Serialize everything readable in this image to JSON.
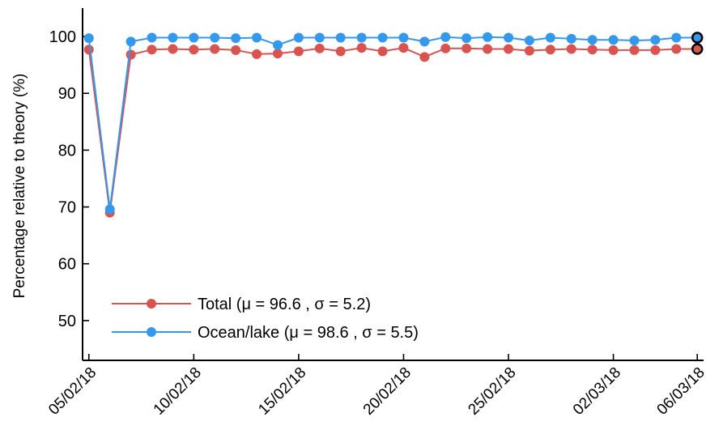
{
  "chart_data": {
    "type": "line",
    "ylabel": "Percentage relative to theory (%)",
    "ylim": [
      43,
      105
    ],
    "yticks": [
      50,
      60,
      70,
      80,
      90,
      100
    ],
    "xlim": [
      -0.3,
      29.3
    ],
    "xticks": [
      {
        "pos": 0,
        "label": "05/02/18"
      },
      {
        "pos": 5,
        "label": "10/02/18"
      },
      {
        "pos": 10,
        "label": "15/02/18"
      },
      {
        "pos": 15,
        "label": "20/02/18"
      },
      {
        "pos": 20,
        "label": "25/02/18"
      },
      {
        "pos": 25,
        "label": "02/03/18"
      },
      {
        "pos": 29,
        "label": "06/03/18"
      }
    ],
    "x": [
      0,
      1,
      2,
      3,
      4,
      5,
      6,
      7,
      8,
      9,
      10,
      11,
      12,
      13,
      14,
      15,
      16,
      17,
      18,
      19,
      20,
      21,
      22,
      23,
      24,
      25,
      26,
      27,
      28,
      29
    ],
    "series": [
      {
        "name": "Total",
        "color": "#d9534f",
        "values": [
          97.7,
          69.0,
          96.8,
          97.7,
          97.8,
          97.7,
          97.8,
          97.6,
          96.9,
          97.0,
          97.4,
          97.9,
          97.4,
          98.0,
          97.4,
          98.0,
          96.4,
          97.9,
          97.9,
          97.8,
          97.8,
          97.5,
          97.7,
          97.8,
          97.7,
          97.6,
          97.6,
          97.6,
          97.8,
          97.8
        ],
        "last_marker_edge": "#000000"
      },
      {
        "name": "Ocean/lake",
        "color": "#3399ee",
        "values": [
          99.7,
          69.6,
          99.1,
          99.8,
          99.8,
          99.8,
          99.8,
          99.7,
          99.8,
          98.5,
          99.8,
          99.8,
          99.8,
          99.8,
          99.8,
          99.8,
          99.1,
          99.9,
          99.7,
          99.9,
          99.8,
          99.3,
          99.8,
          99.6,
          99.4,
          99.4,
          99.3,
          99.4,
          99.8,
          99.8
        ],
        "last_marker_edge": "#000000"
      }
    ],
    "legend": {
      "position": "bottom-left",
      "entries": [
        {
          "series": 0,
          "label": "Total (μ = 96.6 , σ = 5.2)"
        },
        {
          "series": 1,
          "label": "Ocean/lake (μ = 98.6 , σ = 5.5)"
        }
      ]
    },
    "grid": false,
    "axes_box": "left-and-bottom"
  }
}
